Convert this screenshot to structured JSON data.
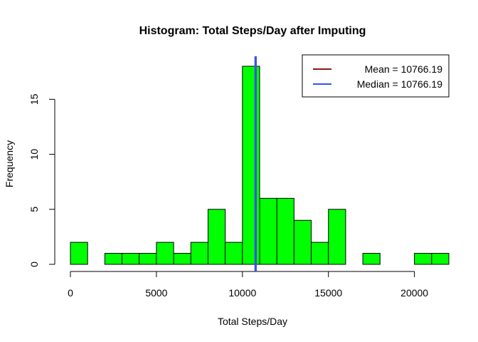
{
  "chart_data": {
    "type": "bar",
    "title": "Histogram: Total Steps/Day after Imputing",
    "xlabel": "Total Steps/Day",
    "ylabel": "Frequency",
    "bin_width": 1000,
    "bins": [
      {
        "x0": 0,
        "x1": 1000,
        "count": 2
      },
      {
        "x0": 1000,
        "x1": 2000,
        "count": 0
      },
      {
        "x0": 2000,
        "x1": 3000,
        "count": 1
      },
      {
        "x0": 3000,
        "x1": 4000,
        "count": 1
      },
      {
        "x0": 4000,
        "x1": 5000,
        "count": 1
      },
      {
        "x0": 5000,
        "x1": 6000,
        "count": 2
      },
      {
        "x0": 6000,
        "x1": 7000,
        "count": 1
      },
      {
        "x0": 7000,
        "x1": 8000,
        "count": 2
      },
      {
        "x0": 8000,
        "x1": 9000,
        "count": 5
      },
      {
        "x0": 9000,
        "x1": 10000,
        "count": 2
      },
      {
        "x0": 10000,
        "x1": 11000,
        "count": 18
      },
      {
        "x0": 11000,
        "x1": 12000,
        "count": 6
      },
      {
        "x0": 12000,
        "x1": 13000,
        "count": 6
      },
      {
        "x0": 13000,
        "x1": 14000,
        "count": 4
      },
      {
        "x0": 14000,
        "x1": 15000,
        "count": 2
      },
      {
        "x0": 15000,
        "x1": 16000,
        "count": 5
      },
      {
        "x0": 16000,
        "x1": 17000,
        "count": 0
      },
      {
        "x0": 17000,
        "x1": 18000,
        "count": 1
      },
      {
        "x0": 18000,
        "x1": 19000,
        "count": 0
      },
      {
        "x0": 19000,
        "x1": 20000,
        "count": 0
      },
      {
        "x0": 20000,
        "x1": 21000,
        "count": 1
      },
      {
        "x0": 21000,
        "x1": 22000,
        "count": 1
      }
    ],
    "xlim": [
      0,
      22000
    ],
    "ylim": [
      0,
      18
    ],
    "x_ticks": [
      0,
      5000,
      10000,
      15000,
      20000
    ],
    "y_ticks": [
      0,
      5,
      10,
      15
    ],
    "bar_color": "#00ff00",
    "bar_border_color": "#000000",
    "grid": false,
    "lines": [
      {
        "label": "Mean =  10766.19",
        "value": 10766.19,
        "color": "#8b1a1a"
      },
      {
        "label": "Median =  10766.19",
        "value": 10766.19,
        "color": "#3355ee"
      }
    ],
    "legend": {
      "position": "top-right",
      "entries": [
        "Mean =  10766.19",
        "Median =  10766.19"
      ]
    }
  }
}
